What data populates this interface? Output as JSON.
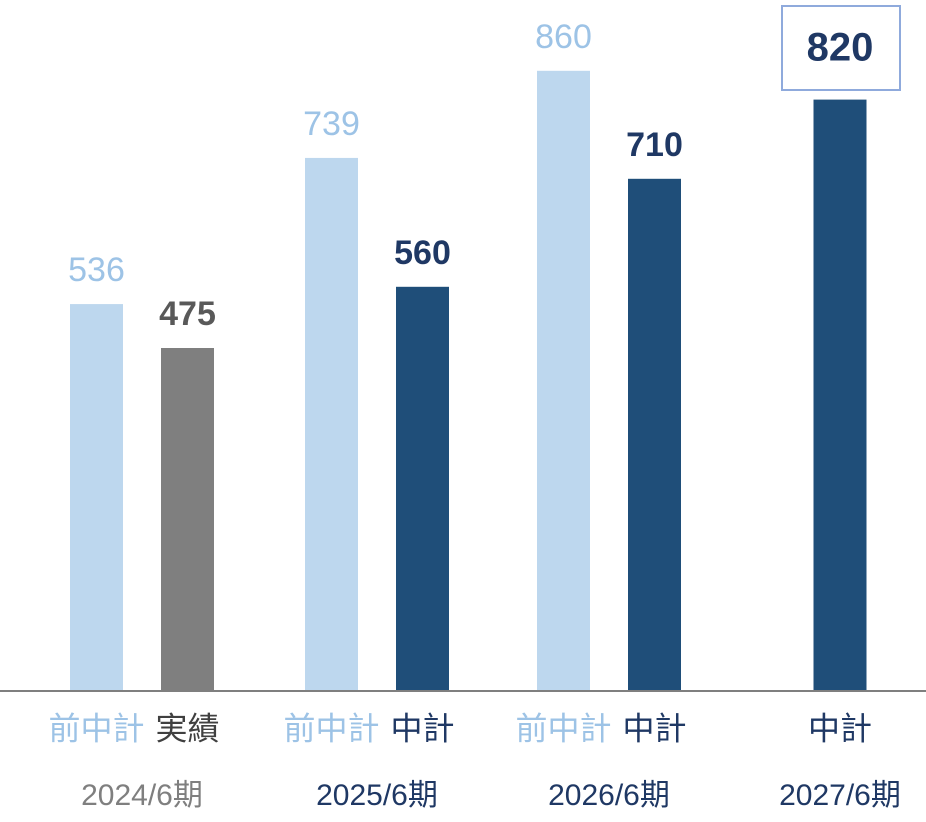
{
  "chart_data": {
    "type": "bar",
    "ylim": [
      0,
      900
    ],
    "groups": [
      {
        "period": "2024/6期",
        "color": "#7f7f7f",
        "bars": [
          {
            "label": "前中計",
            "value": 536,
            "color": "#bdd7ee",
            "label_color": "#9dc3e6"
          },
          {
            "label": "実績",
            "value": 475,
            "color": "#7f7f7f",
            "label_color": "#404040"
          }
        ]
      },
      {
        "period": "2025/6期",
        "color": "#1f3864",
        "bars": [
          {
            "label": "前中計",
            "value": 739,
            "color": "#bdd7ee",
            "label_color": "#9dc3e6"
          },
          {
            "label": "中計",
            "value": 560,
            "color": "#1f4e79",
            "label_color": "#1f3864"
          }
        ]
      },
      {
        "period": "2026/6期",
        "color": "#1f3864",
        "bars": [
          {
            "label": "前中計",
            "value": 860,
            "color": "#bdd7ee",
            "label_color": "#9dc3e6"
          },
          {
            "label": "中計",
            "value": 710,
            "color": "#1f4e79",
            "label_color": "#1f3864"
          }
        ]
      },
      {
        "period": "2027/6期",
        "color": "#1f3864",
        "bars": [
          {
            "label": "中計",
            "value": 820,
            "color": "#1f4e79",
            "label_color": "#1f3864",
            "highlight": true
          }
        ]
      }
    ]
  }
}
